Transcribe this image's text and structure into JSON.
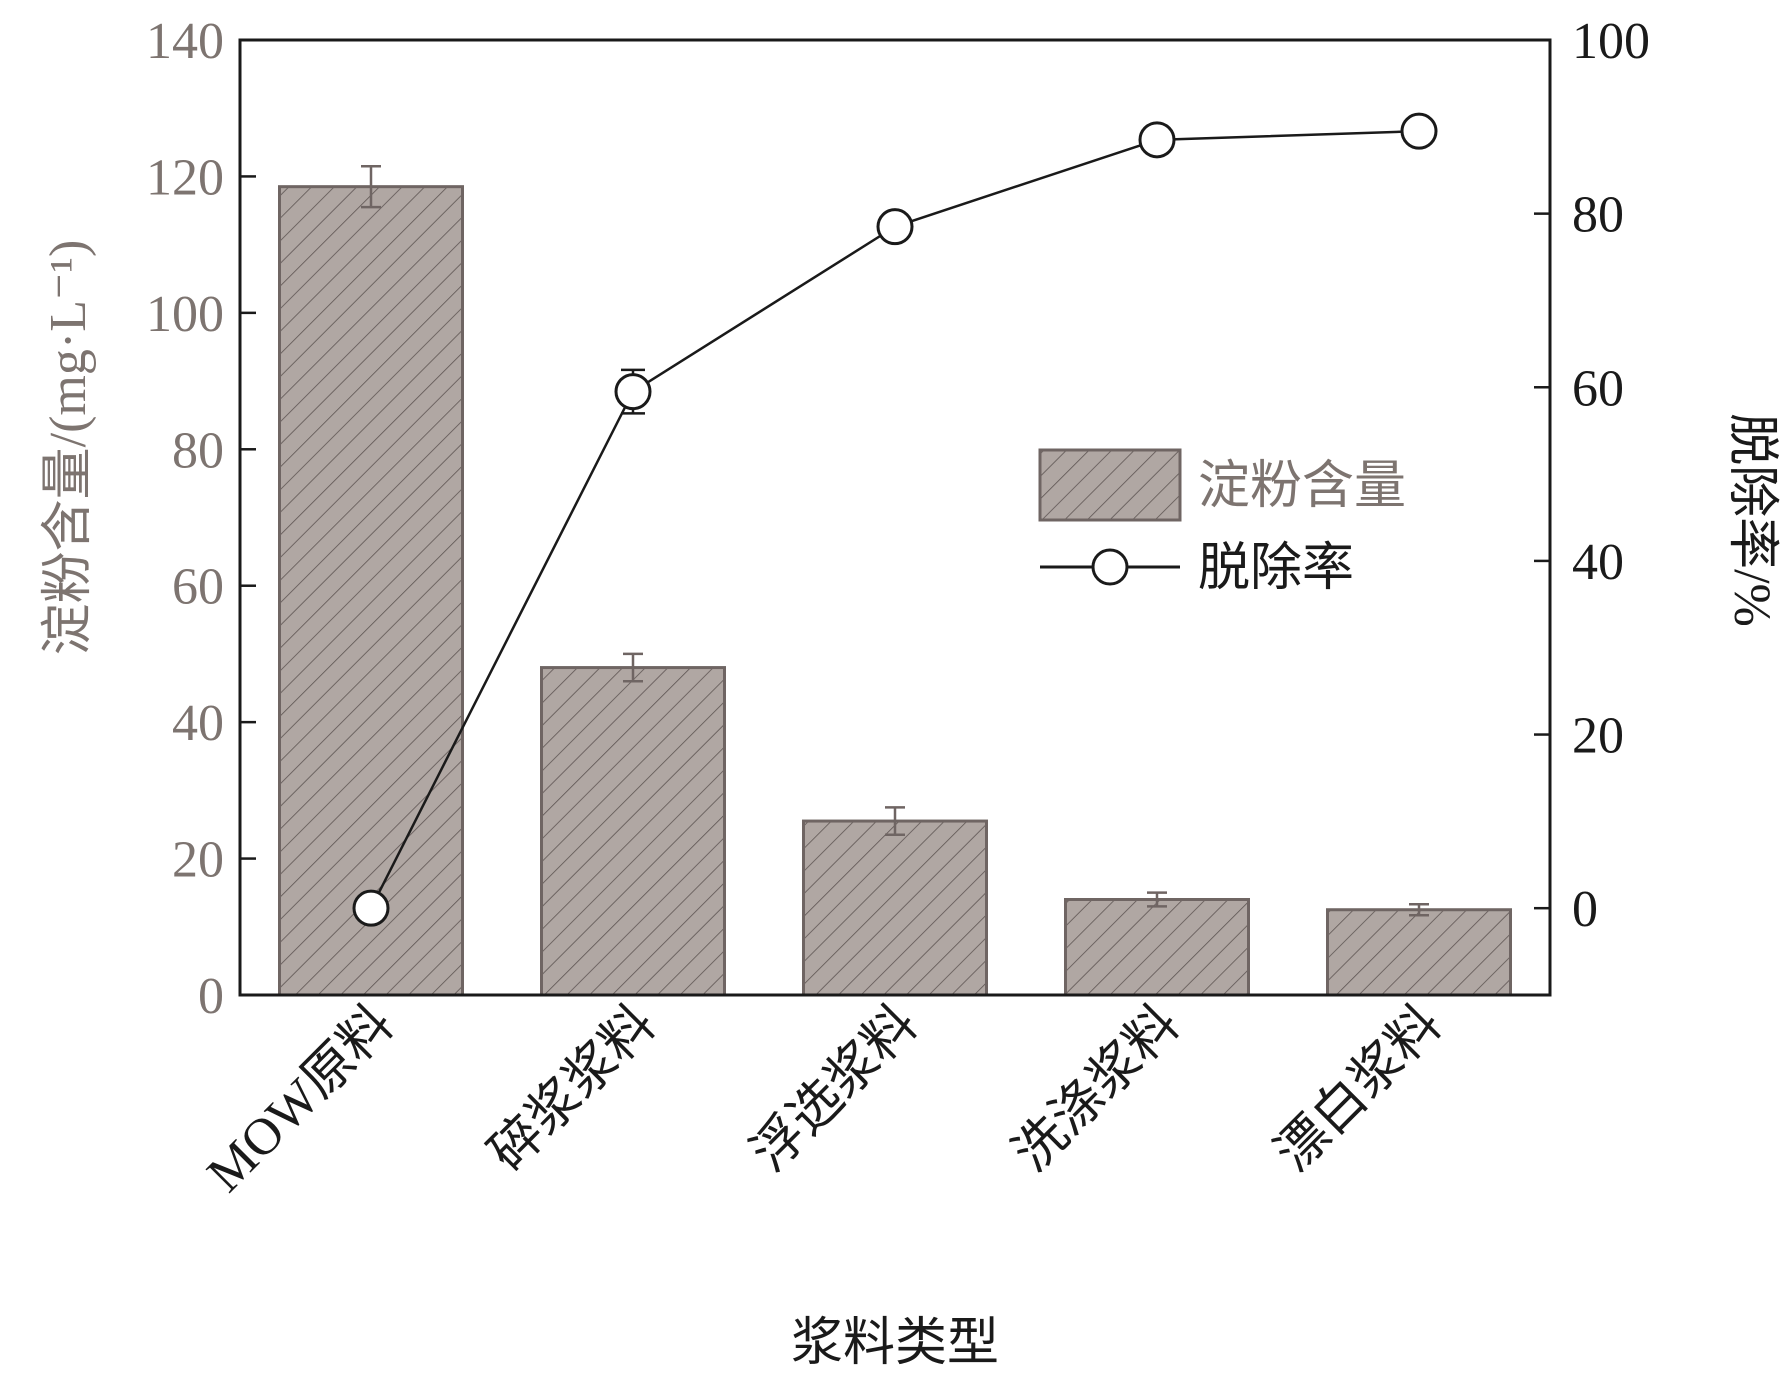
{
  "chart_data": {
    "type": "bar",
    "xlabel": "浆料类型",
    "categories": [
      "MOW原料",
      "碎浆浆料",
      "浮选浆料",
      "洗涤浆料",
      "漂白浆料"
    ],
    "series": [
      {
        "name": "淀粉含量",
        "type": "bar",
        "axis": "left",
        "values": [
          118.5,
          48,
          25.5,
          14,
          12.5
        ],
        "errors": [
          3,
          2,
          2,
          1,
          0.8
        ],
        "color": "#b0a7a3",
        "stroke": "#6f6563"
      },
      {
        "name": "脱除率",
        "type": "line",
        "axis": "right",
        "values": [
          0,
          59.5,
          78.5,
          88.5,
          89.5
        ],
        "errors": [
          0,
          2.5,
          1,
          1.5,
          1.2
        ],
        "color": "#1a1a1a"
      }
    ],
    "y_left": {
      "label": "淀粉含量/(mg·L⁻¹)",
      "ylim": [
        0,
        140
      ],
      "ticks": [
        "0",
        "20",
        "40",
        "60",
        "80",
        "100",
        "120",
        "140"
      ],
      "color": "#7d7470"
    },
    "y_right": {
      "label": "脱除率/%",
      "ylim": [
        -10,
        100
      ],
      "ticks": [
        "0",
        "20",
        "40",
        "60",
        "80",
        "100"
      ],
      "color": "#1a1a1a"
    },
    "legend": {
      "position": "center-right",
      "entries": [
        "淀粉含量",
        "脱除率"
      ]
    },
    "grid": false
  }
}
